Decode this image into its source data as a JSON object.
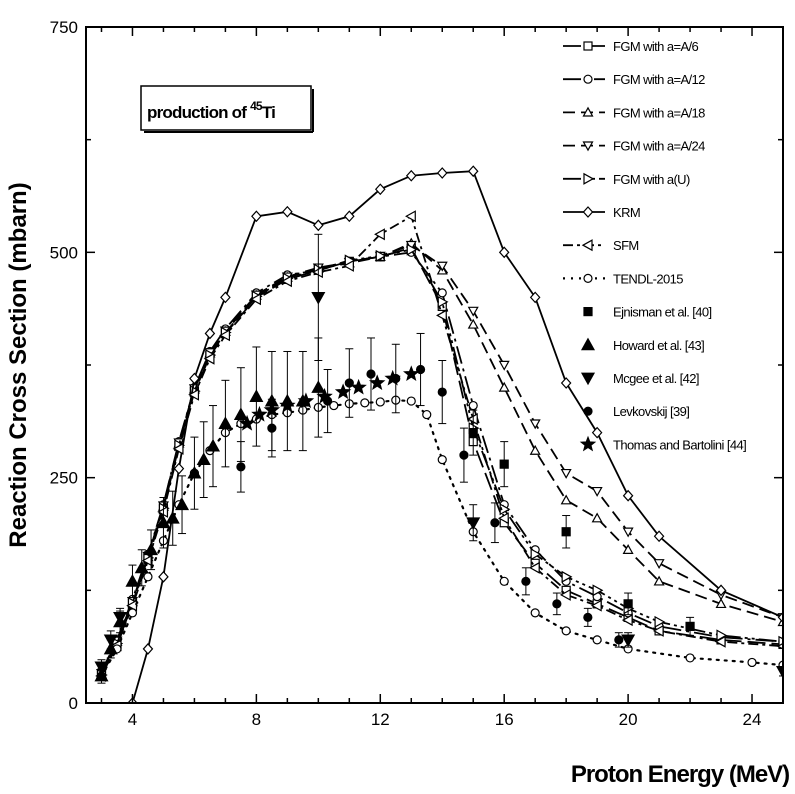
{
  "chart_data": {
    "type": "scatter",
    "xlabel": "Proton Energy (MeV)",
    "ylabel": "Reaction Cross Section (mbarn)",
    "xlim": [
      2.5,
      25
    ],
    "ylim": [
      0,
      750
    ],
    "x_ticks": [
      4,
      8,
      12,
      16,
      20,
      24
    ],
    "y_ticks": [
      0,
      250,
      500,
      750
    ],
    "grid": false,
    "legend_position": "top-right",
    "annotation": {
      "prefix": "production of ",
      "superscript": "45",
      "element": "Ti"
    },
    "series": [
      {
        "name": "FGM with a=A/6",
        "style": "long-dash",
        "marker": "square-open",
        "color": "#000000",
        "x": [
          3,
          3.5,
          4,
          4.5,
          5,
          5.5,
          6,
          6.5,
          7,
          8,
          9,
          10,
          11,
          12,
          13,
          14,
          15,
          16,
          17,
          18,
          19,
          20,
          21,
          23,
          25
        ],
        "y": [
          30,
          65,
          110,
          160,
          215,
          285,
          345,
          385,
          410,
          450,
          470,
          480,
          490,
          495,
          505,
          440,
          290,
          200,
          155,
          125,
          110,
          95,
          80,
          70,
          65
        ]
      },
      {
        "name": "FGM with a=A/12",
        "style": "long-dash-dot",
        "marker": "circle-open",
        "color": "#000000",
        "x": [
          3,
          3.5,
          4,
          4.5,
          5,
          5.5,
          6,
          6.5,
          7,
          8,
          9,
          10,
          11,
          12,
          13,
          14,
          15,
          16,
          17,
          18,
          19,
          20,
          21,
          23,
          25
        ],
        "y": [
          35,
          70,
          115,
          165,
          220,
          290,
          350,
          390,
          415,
          455,
          475,
          480,
          490,
          495,
          500,
          455,
          330,
          220,
          170,
          135,
          118,
          100,
          85,
          73,
          68
        ]
      },
      {
        "name": "FGM with a=A/18",
        "style": "dash",
        "marker": "triangle-up-open",
        "color": "#000000",
        "x": [
          3,
          3.5,
          4,
          4.5,
          5,
          5.5,
          6,
          6.5,
          7,
          8,
          9,
          10,
          11,
          12,
          13,
          14,
          15,
          16,
          17,
          18,
          19,
          20,
          21,
          23,
          25
        ],
        "y": [
          32,
          68,
          112,
          162,
          218,
          288,
          348,
          388,
          412,
          452,
          472,
          482,
          488,
          495,
          510,
          480,
          420,
          350,
          280,
          225,
          205,
          170,
          135,
          110,
          90
        ]
      },
      {
        "name": "FGM with a=A/24",
        "style": "dash",
        "marker": "triangle-down-open",
        "color": "#000000",
        "x": [
          3,
          3.5,
          4,
          4.5,
          5,
          5.5,
          6,
          6.5,
          7,
          8,
          9,
          10,
          11,
          12,
          13,
          14,
          15,
          16,
          17,
          18,
          19,
          20,
          21,
          23,
          25
        ],
        "y": [
          33,
          69,
          113,
          163,
          219,
          289,
          349,
          389,
          413,
          453,
          473,
          483,
          489,
          496,
          508,
          485,
          435,
          375,
          310,
          255,
          235,
          190,
          155,
          120,
          95
        ]
      },
      {
        "name": "FGM with a(U)",
        "style": "long-dash-double-dot",
        "marker": "triangle-right-open",
        "color": "#000000",
        "x": [
          3,
          3.5,
          4,
          4.5,
          5,
          5.5,
          6,
          6.5,
          7,
          8,
          9,
          10,
          11,
          12,
          13,
          14,
          15,
          16,
          17,
          18,
          19,
          20,
          21,
          23,
          25
        ],
        "y": [
          31,
          66,
          111,
          161,
          216,
          286,
          346,
          386,
          411,
          451,
          471,
          481,
          491,
          496,
          503,
          445,
          305,
          215,
          165,
          140,
          125,
          105,
          90,
          75,
          68
        ]
      },
      {
        "name": "KRM",
        "style": "solid",
        "marker": "diamond-open",
        "color": "#000000",
        "x": [
          4,
          4.5,
          5,
          5.5,
          6,
          6.5,
          7,
          8,
          9,
          10,
          11,
          12,
          13,
          14,
          15,
          16,
          17,
          18,
          19,
          20,
          21,
          23,
          25
        ],
        "y": [
          0,
          60,
          140,
          260,
          360,
          410,
          450,
          540,
          545,
          530,
          540,
          570,
          585,
          588,
          590,
          500,
          450,
          355,
          300,
          230,
          185,
          125,
          95
        ]
      },
      {
        "name": "SFM",
        "style": "dash-dot",
        "marker": "triangle-left-open",
        "color": "#000000",
        "x": [
          3,
          3.5,
          4,
          4.5,
          5,
          5.5,
          6,
          6.5,
          7,
          8,
          9,
          10,
          11,
          12,
          13,
          14,
          15,
          16,
          17,
          18,
          19,
          20,
          21,
          23,
          25
        ],
        "y": [
          30,
          64,
          108,
          158,
          212,
          282,
          342,
          382,
          408,
          448,
          468,
          478,
          485,
          520,
          540,
          430,
          315,
          205,
          150,
          120,
          108,
          92,
          80,
          68,
          63
        ]
      },
      {
        "name": "TENDL-2015",
        "style": "dot",
        "marker": "hexagon-open",
        "color": "#000000",
        "x": [
          3,
          3.5,
          4,
          4.5,
          5,
          5.5,
          6,
          6.5,
          7,
          7.5,
          8,
          8.5,
          9,
          9.5,
          10,
          10.5,
          11,
          11.5,
          12,
          12.5,
          13,
          13.5,
          14,
          15,
          16,
          17,
          18,
          19,
          20,
          22,
          24,
          25
        ],
        "y": [
          30,
          60,
          100,
          140,
          180,
          220,
          255,
          280,
          300,
          310,
          315,
          320,
          322,
          325,
          328,
          330,
          332,
          333,
          334,
          336,
          335,
          320,
          270,
          190,
          135,
          100,
          80,
          70,
          60,
          50,
          45,
          42
        ]
      },
      {
        "name": "Ejnisman et al. [40]",
        "style": "none",
        "marker": "square-filled",
        "color": "#000000",
        "x": [
          15,
          16,
          18,
          20,
          22
        ],
        "y": [
          300,
          265,
          190,
          110,
          85
        ],
        "yerr": [
          25,
          25,
          18,
          12,
          10
        ]
      },
      {
        "name": "Howard et al. [43]",
        "style": "none",
        "marker": "triangle-up-filled",
        "color": "#000000",
        "x": [
          3,
          3.3,
          3.6,
          4,
          4.3,
          4.6,
          5,
          5.3,
          5.6,
          6,
          6.3,
          6.6,
          7,
          7.5,
          8,
          8.5,
          9,
          9.5,
          10
        ],
        "y": [
          30,
          60,
          90,
          135,
          150,
          170,
          200,
          205,
          220,
          255,
          270,
          285,
          310,
          320,
          340,
          335,
          335,
          335,
          350
        ],
        "yerr": [
          8,
          10,
          12,
          18,
          20,
          22,
          28,
          30,
          32,
          40,
          42,
          45,
          48,
          52,
          55,
          55,
          55,
          55,
          55
        ]
      },
      {
        "name": "Mcgee et al. [42]",
        "style": "none",
        "marker": "triangle-down-filled",
        "color": "#000000",
        "x": [
          3,
          3.3,
          3.6,
          10,
          15,
          20,
          25
        ],
        "y": [
          40,
          70,
          95,
          450,
          200,
          70,
          35
        ],
        "yerr": [
          8,
          10,
          10,
          70,
          20,
          8,
          5
        ]
      },
      {
        "name": "Levkovskij [39]",
        "style": "none",
        "marker": "circle-filled",
        "color": "#000000",
        "x": [
          7.5,
          8.5,
          10.3,
          11,
          11.7,
          12.5,
          13.3,
          14,
          14.7,
          15.7,
          16.7,
          17.7,
          18.7,
          19.7
        ],
        "y": [
          262,
          305,
          335,
          355,
          365,
          360,
          370,
          345,
          275,
          200,
          135,
          110,
          95,
          70
        ],
        "yerr": [
          28,
          32,
          35,
          38,
          40,
          38,
          40,
          35,
          30,
          22,
          15,
          12,
          10,
          8
        ]
      },
      {
        "name": "Thomas and Bartolini [44]",
        "style": "none",
        "marker": "star-filled",
        "color": "#000000",
        "x": [
          7.7,
          8.1,
          8.5,
          9,
          9.6,
          10.2,
          10.8,
          11.3,
          11.9,
          12.4,
          13
        ],
        "y": [
          310,
          320,
          325,
          330,
          335,
          340,
          345,
          350,
          355,
          360,
          365
        ],
        "yerr": [
          0,
          0,
          0,
          0,
          0,
          0,
          0,
          0,
          0,
          0,
          0
        ]
      }
    ]
  }
}
